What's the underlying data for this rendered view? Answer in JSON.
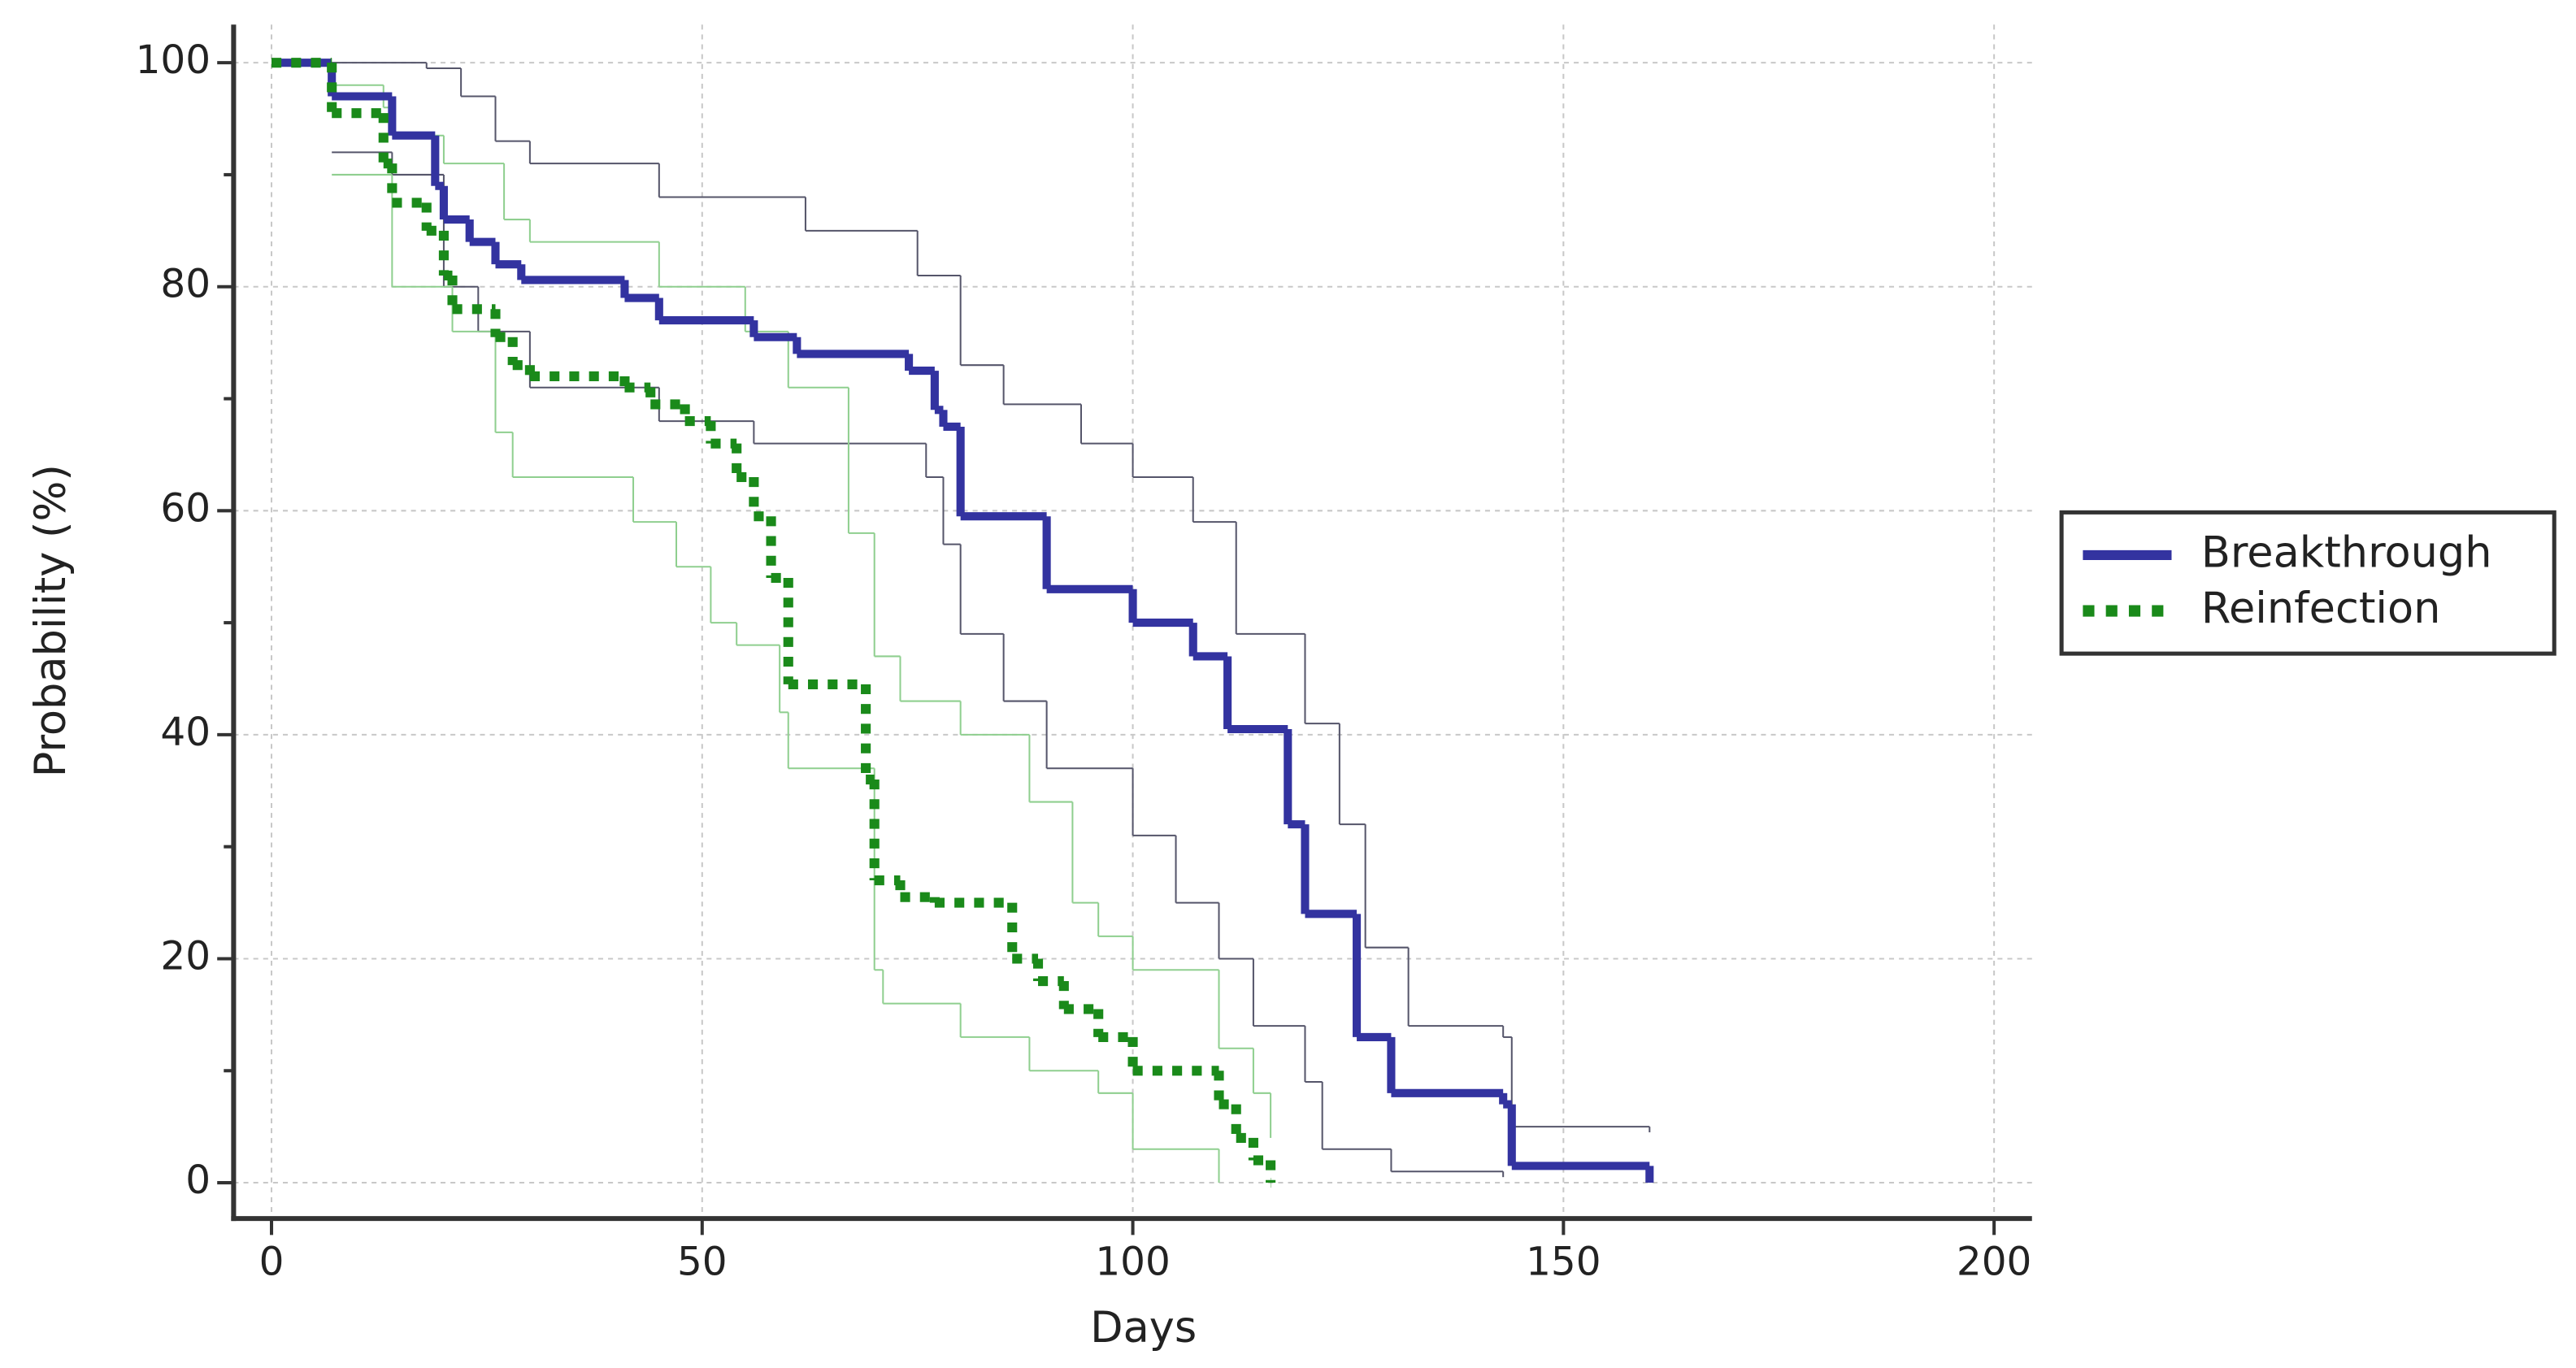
{
  "chart_data": {
    "type": "step",
    "x_label": "Days",
    "y_label": "Probability (%)",
    "xlim": [
      -4.4,
      204.4
    ],
    "xticks": [
      0,
      50,
      100,
      150,
      200
    ],
    "ylim": [
      -3.2,
      103.4
    ],
    "yticks": [
      0,
      20,
      40,
      60,
      80,
      100
    ],
    "yminorticks": [
      10,
      30,
      50,
      70,
      90
    ],
    "grid": true,
    "legend": "right",
    "series": [
      {
        "name": "Breakthrough",
        "color": "#3333a0",
        "x": [
          0,
          7,
          14,
          19,
          20,
          23,
          26,
          29,
          41,
          45,
          56,
          61,
          74,
          77,
          78,
          80,
          90,
          100,
          107,
          111,
          118,
          120,
          126,
          130,
          143,
          144,
          160
        ],
        "values": [
          100,
          97,
          93.5,
          89,
          86,
          84,
          82,
          80.6,
          79,
          77,
          75.5,
          74,
          72.5,
          69,
          67.5,
          59.5,
          53,
          50,
          47,
          40.5,
          32,
          24,
          13,
          8,
          7,
          1.5,
          0
        ],
        "ci_color": "#55556a",
        "ci": [
          {
            "x": [
              0,
              18,
              22,
              26,
              30,
              45,
              62,
              75,
              80,
              85,
              94,
              100,
              107,
              112,
              120,
              124,
              127,
              132,
              143,
              144,
              160
            ],
            "values": [
              100,
              99.5,
              97,
              93,
              91,
              88,
              85,
              81,
              73,
              69.5,
              66,
              63,
              59,
              49,
              41,
              32,
              21,
              14,
              13,
              5,
              4.5
            ]
          },
          {
            "x": [
              7,
              14,
              20,
              24,
              30,
              45,
              56,
              76,
              78,
              80,
              85,
              90,
              100,
              105,
              110,
              114,
              120,
              122,
              130,
              143
            ],
            "values": [
              92,
              90,
              80,
              76,
              71,
              68,
              66,
              63,
              57,
              49,
              43,
              37,
              31,
              25,
              20,
              14,
              9,
              3,
              1,
              0.5
            ]
          }
        ]
      },
      {
        "name": "Reinfection",
        "color": "#1a8a1a",
        "x": [
          0,
          7,
          13,
          14,
          18,
          20,
          21,
          26,
          28,
          30,
          41,
          44,
          48,
          51,
          54,
          56,
          58,
          60,
          69,
          70,
          73,
          77,
          86,
          89,
          92,
          96,
          100,
          110,
          112,
          114,
          116
        ],
        "values": [
          100,
          95.5,
          91,
          87.5,
          85,
          81,
          78,
          75.5,
          73,
          72,
          71,
          69.5,
          68,
          66,
          63,
          59.5,
          54,
          44.5,
          36,
          27,
          25.5,
          25,
          20,
          18,
          15.5,
          13,
          10,
          7,
          4,
          2,
          0
        ],
        "ci_color": "#8fcf8f",
        "ci": [
          {
            "x": [
              7,
              13,
              14,
              20,
              27,
              30,
              45,
              55,
              60,
              67,
              70,
              73,
              80,
              88,
              93,
              96,
              100,
              110,
              114,
              116
            ],
            "values": [
              98,
              96,
              93.5,
              91,
              86,
              84,
              80,
              76,
              71,
              58,
              47,
              43,
              40,
              34,
              25,
              22,
              19,
              12,
              8,
              4
            ]
          },
          {
            "x": [
              7,
              14,
              21,
              26,
              28,
              42,
              47,
              51,
              54,
              59,
              60,
              70,
              71,
              80,
              88,
              96,
              100,
              110
            ],
            "values": [
              90,
              80,
              76,
              67,
              63,
              59,
              55,
              50,
              48,
              42,
              37,
              19,
              16,
              13,
              10,
              8,
              3,
              0
            ]
          }
        ]
      }
    ]
  }
}
